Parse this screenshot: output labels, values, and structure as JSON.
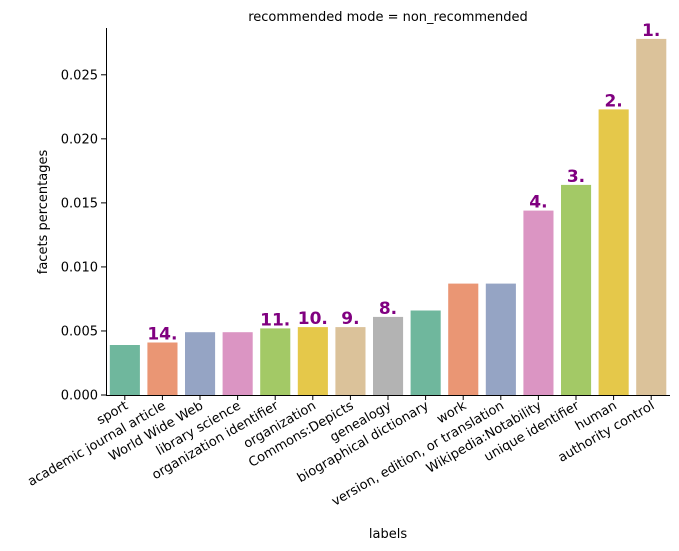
{
  "chart_data": {
    "type": "bar",
    "title": "recommended mode = non_recommended",
    "xlabel": "labels",
    "ylabel": "facets percentages",
    "ylim": [
      0,
      0.0292
    ],
    "yticks": [
      "0.000",
      "0.005",
      "0.010",
      "0.015",
      "0.020",
      "0.025"
    ],
    "categories": [
      "sport",
      "academic journal article",
      "World Wide Web",
      "library science",
      "organization identifier",
      "organization",
      "Commons:Depicts",
      "genealogy",
      "biographical dictionary",
      "work",
      "version, edition, or translation",
      "Wikipedia:Notability",
      "unique identifier",
      "human",
      "authority control"
    ],
    "values": [
      0.0039,
      0.0041,
      0.0049,
      0.0049,
      0.0052,
      0.0053,
      0.0053,
      0.0061,
      0.0066,
      0.0087,
      0.0087,
      0.0144,
      0.0164,
      0.0223,
      0.0278
    ],
    "annotations": [
      "",
      "14.",
      "",
      "",
      "11.",
      "10.",
      "9.",
      "8.",
      "",
      "",
      "",
      "4.",
      "3.",
      "2.",
      "1."
    ],
    "annotation_color": "#800080",
    "colors": [
      "#6fb79d",
      "#ea9674",
      "#95a4c4",
      "#db95c3",
      "#a3c966",
      "#e5c84a",
      "#dbc29a",
      "#b3b3b3",
      "#6fb79d",
      "#ea9674",
      "#95a4c4",
      "#db95c3",
      "#a3c966",
      "#e5c84a",
      "#dbc29a"
    ],
    "grid": false,
    "legend": "none"
  }
}
